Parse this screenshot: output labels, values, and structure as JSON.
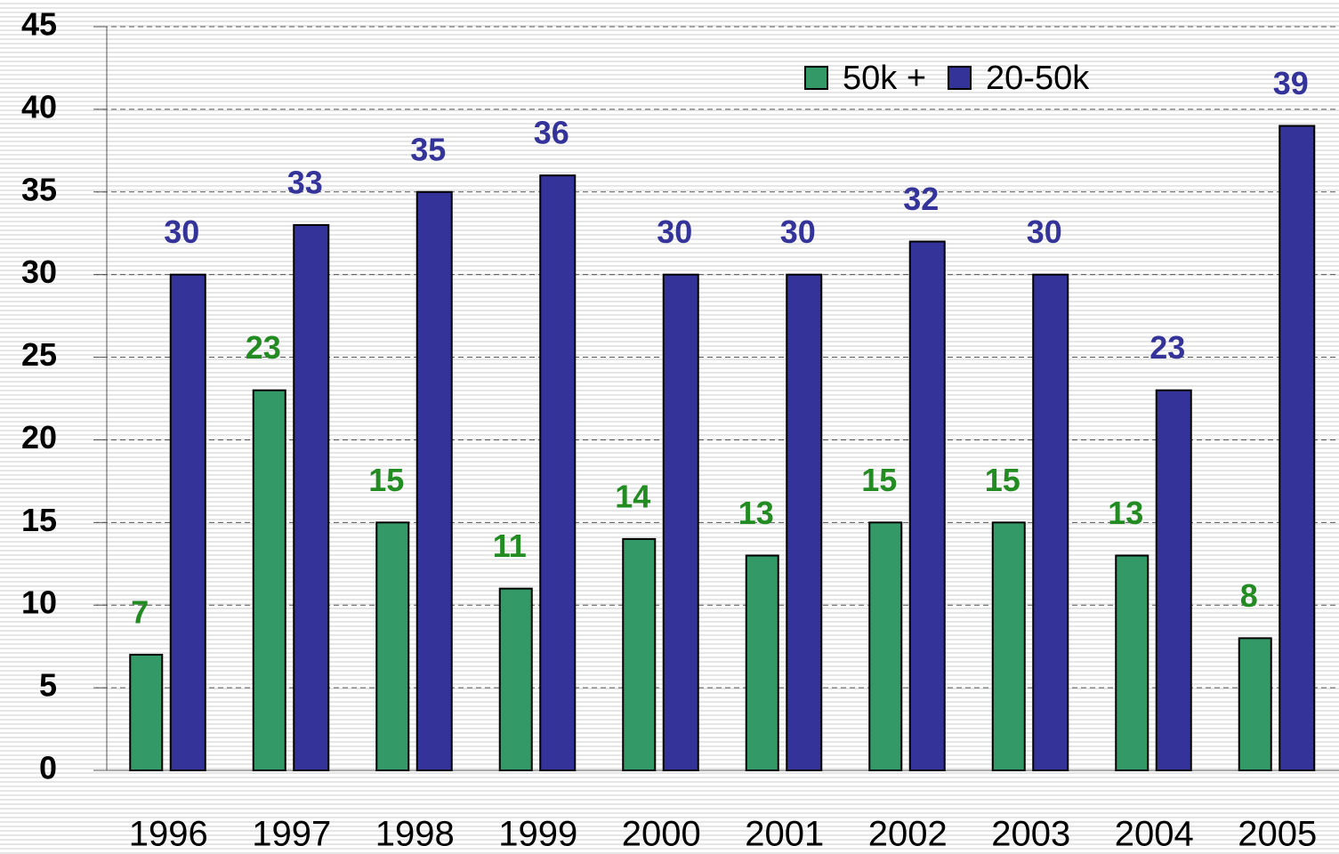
{
  "chart_data": {
    "type": "bar",
    "categories": [
      "1996",
      "1997",
      "1998",
      "1999",
      "2000",
      "2001",
      "2002",
      "2003",
      "2004",
      "2005"
    ],
    "series": [
      {
        "name": "50k +",
        "color": "#339966",
        "label_color": "#228b22",
        "values": [
          7,
          23,
          15,
          11,
          14,
          13,
          15,
          15,
          13,
          8
        ]
      },
      {
        "name": "20-50k",
        "color": "#333399",
        "label_color": "#333399",
        "values": [
          30,
          33,
          35,
          36,
          30,
          30,
          32,
          30,
          23,
          39
        ]
      }
    ],
    "ylim": [
      0,
      45
    ],
    "yticks": [
      0,
      5,
      10,
      15,
      20,
      25,
      30,
      35,
      40,
      45
    ],
    "grid": true,
    "legend": "top-right"
  }
}
